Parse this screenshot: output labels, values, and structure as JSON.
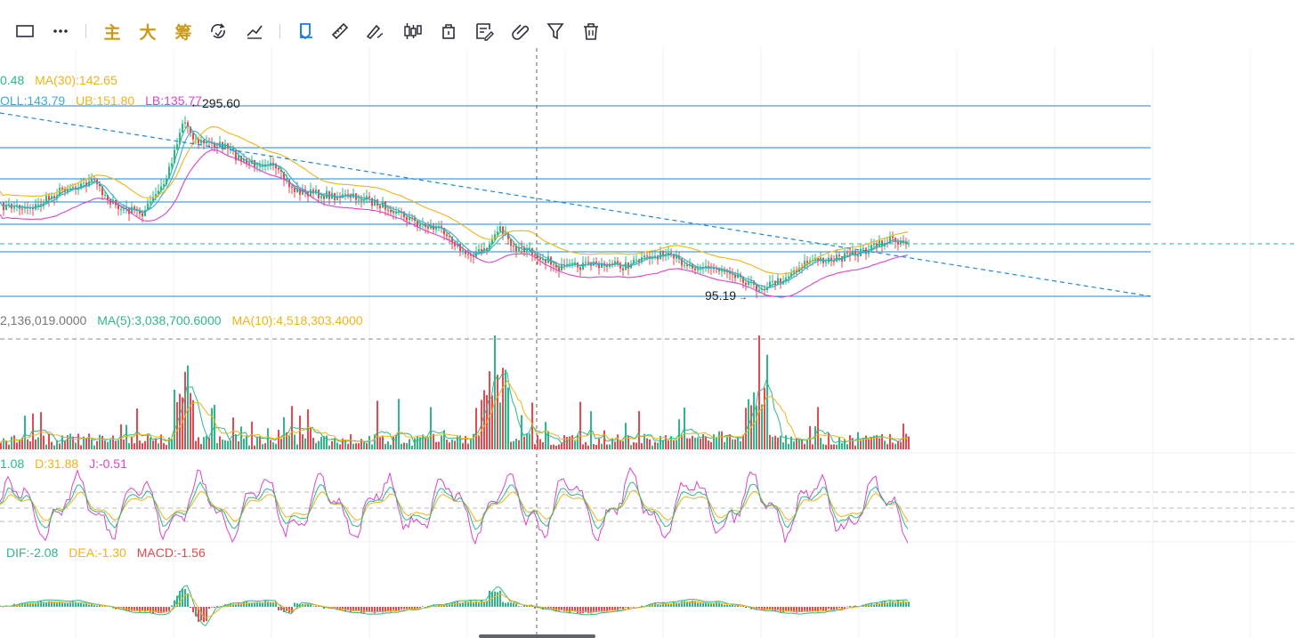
{
  "colors": {
    "up": "#2eb88a",
    "down": "#e8484f",
    "ma5": "#2eb88a",
    "ma10": "#f0b419",
    "ma30": "#f0b419",
    "mid": "#3fa9d6",
    "lb": "#d946c9",
    "hline": "#1e88d6",
    "accent": "#1677ff",
    "gold": "#c99a1b"
  },
  "toolbar": {
    "items": [
      {
        "name": "rectangle-tool-icon",
        "icon": "rectangle"
      },
      {
        "name": "more-tools-icon",
        "icon": "more"
      },
      {
        "name": "main-force-button",
        "label": "主"
      },
      {
        "name": "big-order-button",
        "label": "大"
      },
      {
        "name": "chip-distribution-button",
        "label": "筹"
      },
      {
        "name": "cycle-icon",
        "icon": "cycle"
      },
      {
        "name": "trendline-tool-icon",
        "icon": "trendline"
      },
      {
        "name": "magnet-icon",
        "icon": "magnet"
      },
      {
        "name": "ruler-icon",
        "icon": "ruler"
      },
      {
        "name": "brush-icon",
        "icon": "brush"
      },
      {
        "name": "candlestick-icon",
        "icon": "candles"
      },
      {
        "name": "lock-icon",
        "icon": "lock"
      },
      {
        "name": "edit-note-icon",
        "icon": "edit"
      },
      {
        "name": "link-icon",
        "icon": "link"
      },
      {
        "name": "filter-icon",
        "icon": "filter"
      },
      {
        "name": "delete-icon",
        "icon": "trash"
      }
    ]
  },
  "legends": {
    "main": [
      {
        "text": "0.48",
        "color": "#2eb88a"
      },
      {
        "text": "MA(30):142.65",
        "color": "#f0b419"
      }
    ],
    "boll": [
      {
        "text": "OLL:143.79",
        "color": "#3fa9d6"
      },
      {
        "text": "UB:151.80",
        "color": "#f0b419"
      },
      {
        "text": "LB:135.77",
        "color": "#d946c9"
      }
    ],
    "volume": [
      {
        "text": "2,136,019.0000",
        "color": "#777777"
      },
      {
        "text": "MA(5):3,038,700.6000",
        "color": "#2eb88a"
      },
      {
        "text": "MA(10):4,518,303.4000",
        "color": "#f0b419"
      }
    ],
    "kdj": [
      {
        "text": "1.08",
        "color": "#2eb88a"
      },
      {
        "text": "D:31.88",
        "color": "#f0b419"
      },
      {
        "text": "J:-0.51",
        "color": "#d946c9"
      }
    ],
    "macd": [
      {
        "text": "DIF:-2.08",
        "color": "#2eb88a"
      },
      {
        "text": "DEA:-1.30",
        "color": "#f0b419"
      },
      {
        "text": "MACD:-1.56",
        "color": "#e8484f"
      }
    ]
  },
  "price_marks": {
    "high": "295.60",
    "low": "95.19"
  }
}
